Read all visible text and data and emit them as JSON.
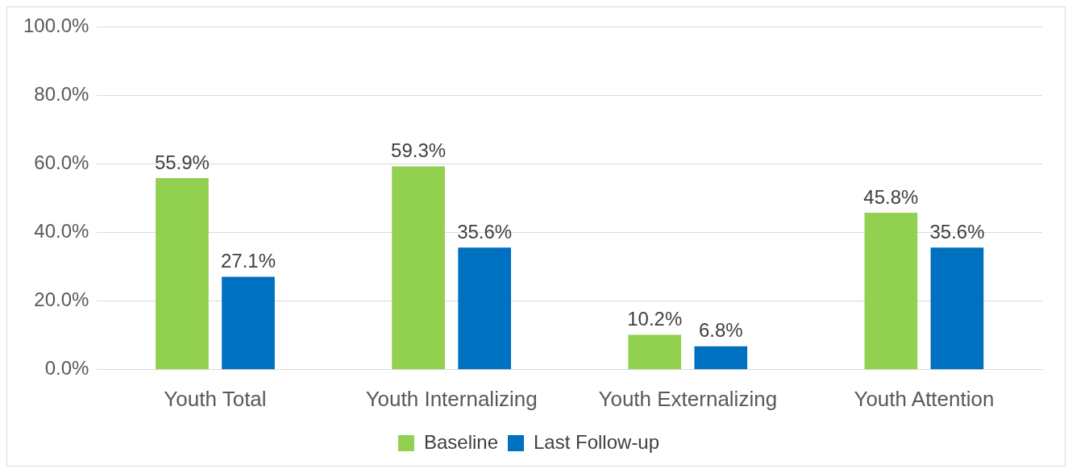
{
  "chart_data": {
    "type": "bar",
    "categories": [
      "Youth Total",
      "Youth Internalizing",
      "Youth Externalizing",
      "Youth Attention"
    ],
    "series": [
      {
        "name": "Baseline",
        "color": "#92d050",
        "values": [
          55.9,
          59.3,
          10.2,
          45.8
        ],
        "value_labels": [
          "55.9%",
          "59.3%",
          "10.2%",
          "45.8%"
        ]
      },
      {
        "name": "Last Follow-up",
        "color": "#0070c0",
        "values": [
          27.1,
          35.6,
          6.8,
          35.6
        ],
        "value_labels": [
          "27.1%",
          "35.6%",
          "6.8%",
          "35.6%"
        ]
      }
    ],
    "ylim": [
      0,
      100
    ],
    "yticks": [
      {
        "value": 0,
        "label": "0.0%"
      },
      {
        "value": 20,
        "label": "20.0%"
      },
      {
        "value": 40,
        "label": "40.0%"
      },
      {
        "value": 60,
        "label": "60.0%"
      },
      {
        "value": 80,
        "label": "80.0%"
      },
      {
        "value": 100,
        "label": "100.0%"
      }
    ],
    "grid": "y",
    "legend": "bottom"
  }
}
